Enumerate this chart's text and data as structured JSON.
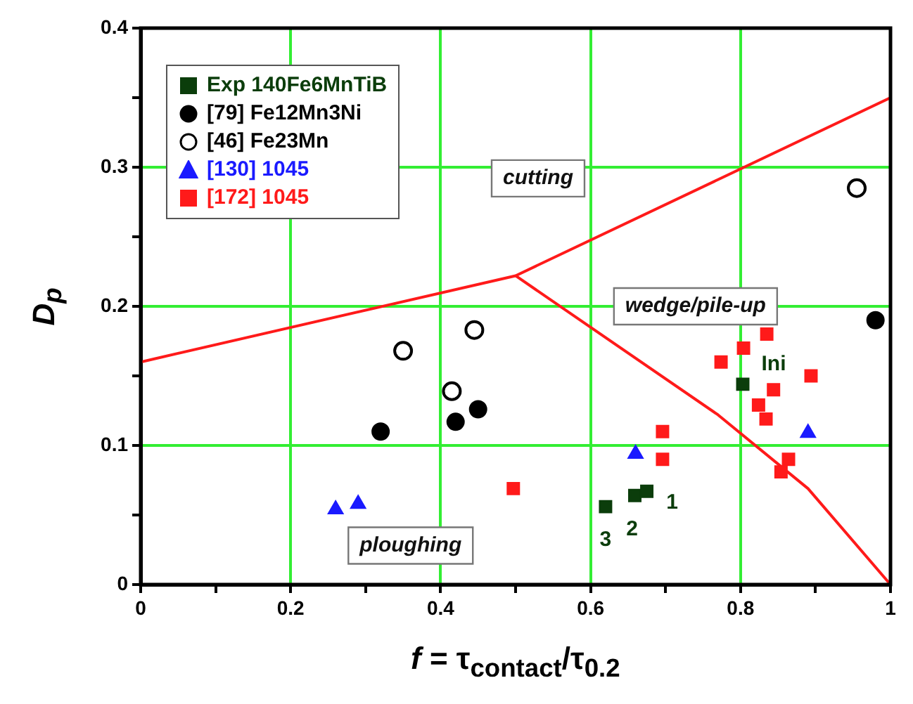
{
  "chart_data": {
    "type": "scatter",
    "xlabel": "f = τ$_{contact}$/τ$_{0.2}$",
    "ylabel": "D$_{p}$",
    "xlim": [
      0,
      1
    ],
    "ylim": [
      0,
      0.4
    ],
    "xticks": [
      0,
      {
        "value": 0.1,
        "label": null
      },
      0.2,
      {
        "value": 0.3,
        "label": null
      },
      0.4,
      {
        "value": 0.5,
        "label": null
      },
      0.6,
      {
        "value": 0.7,
        "label": null
      },
      0.8,
      {
        "value": 0.9,
        "label": null
      },
      1
    ],
    "yticks": [
      0,
      {
        "value": 0.05,
        "label": null
      },
      0.1,
      {
        "value": 0.15,
        "label": null
      },
      0.2,
      {
        "value": 0.25,
        "label": null
      },
      0.3,
      {
        "value": 0.35,
        "label": null
      },
      0.4
    ],
    "grid": true,
    "legend": "top left",
    "series": [
      {
        "name": "Exp 140Fe6MnTiB",
        "color": "#0b3d0b",
        "marker": "square",
        "x": [
          0.62,
          0.659,
          0.675,
          0.803
        ],
        "values": [
          0.056,
          0.064,
          0.067,
          0.144
        ]
      },
      {
        "name": "[79] Fe12Mn3Ni",
        "color": "#000000",
        "marker": "circle",
        "x": [
          0.32,
          0.42,
          0.45,
          0.98
        ],
        "values": [
          0.11,
          0.117,
          0.126,
          0.19
        ]
      },
      {
        "name": "[46] Fe23Mn",
        "color": "#000000",
        "marker": "circle",
        "x": [
          0.35,
          0.415,
          0.445,
          0.955
        ],
        "values": [
          0.168,
          0.139,
          0.183,
          0.285
        ]
      },
      {
        "name": "[130] 1045",
        "color": "#1a1aff",
        "marker": "triangle",
        "x": [
          0.26,
          0.29,
          0.66,
          0.89
        ],
        "values": [
          0.054,
          0.058,
          0.094,
          0.109
        ]
      },
      {
        "name": "[172] 1045",
        "color": "#ff1a1a",
        "marker": "square",
        "x": [
          0.497,
          0.696,
          0.696,
          0.774,
          0.804,
          0.835,
          0.844,
          0.824,
          0.834,
          0.894,
          0.864,
          0.854
        ],
        "values": [
          0.069,
          0.11,
          0.09,
          0.16,
          0.17,
          0.18,
          0.14,
          0.129,
          0.119,
          0.15,
          0.09,
          0.081
        ]
      },
      {
        "type": "line",
        "color": "#ff1a1a",
        "marker": "none",
        "x": [
          0,
          0.5,
          1
        ],
        "values": [
          0.16,
          0.222,
          0.35
        ]
      },
      {
        "type": "line",
        "color": "#ff1a1a",
        "marker": "none",
        "x": [
          0.5,
          0.77,
          0.89,
          1
        ],
        "values": [
          0.222,
          0.122,
          0.069,
          0
        ]
      }
    ],
    "annotations": [
      "cutting",
      "wedge/pile-up",
      "ploughing",
      {
        "text": "3",
        "x": 0.62,
        "y": 0.056
      },
      {
        "text": "2",
        "x": 0.659,
        "y": 0.064
      },
      {
        "text": "1",
        "x": 0.675,
        "y": 0.067
      },
      {
        "text": "Ini",
        "x": 0.803,
        "y": 0.144
      }
    ]
  }
}
